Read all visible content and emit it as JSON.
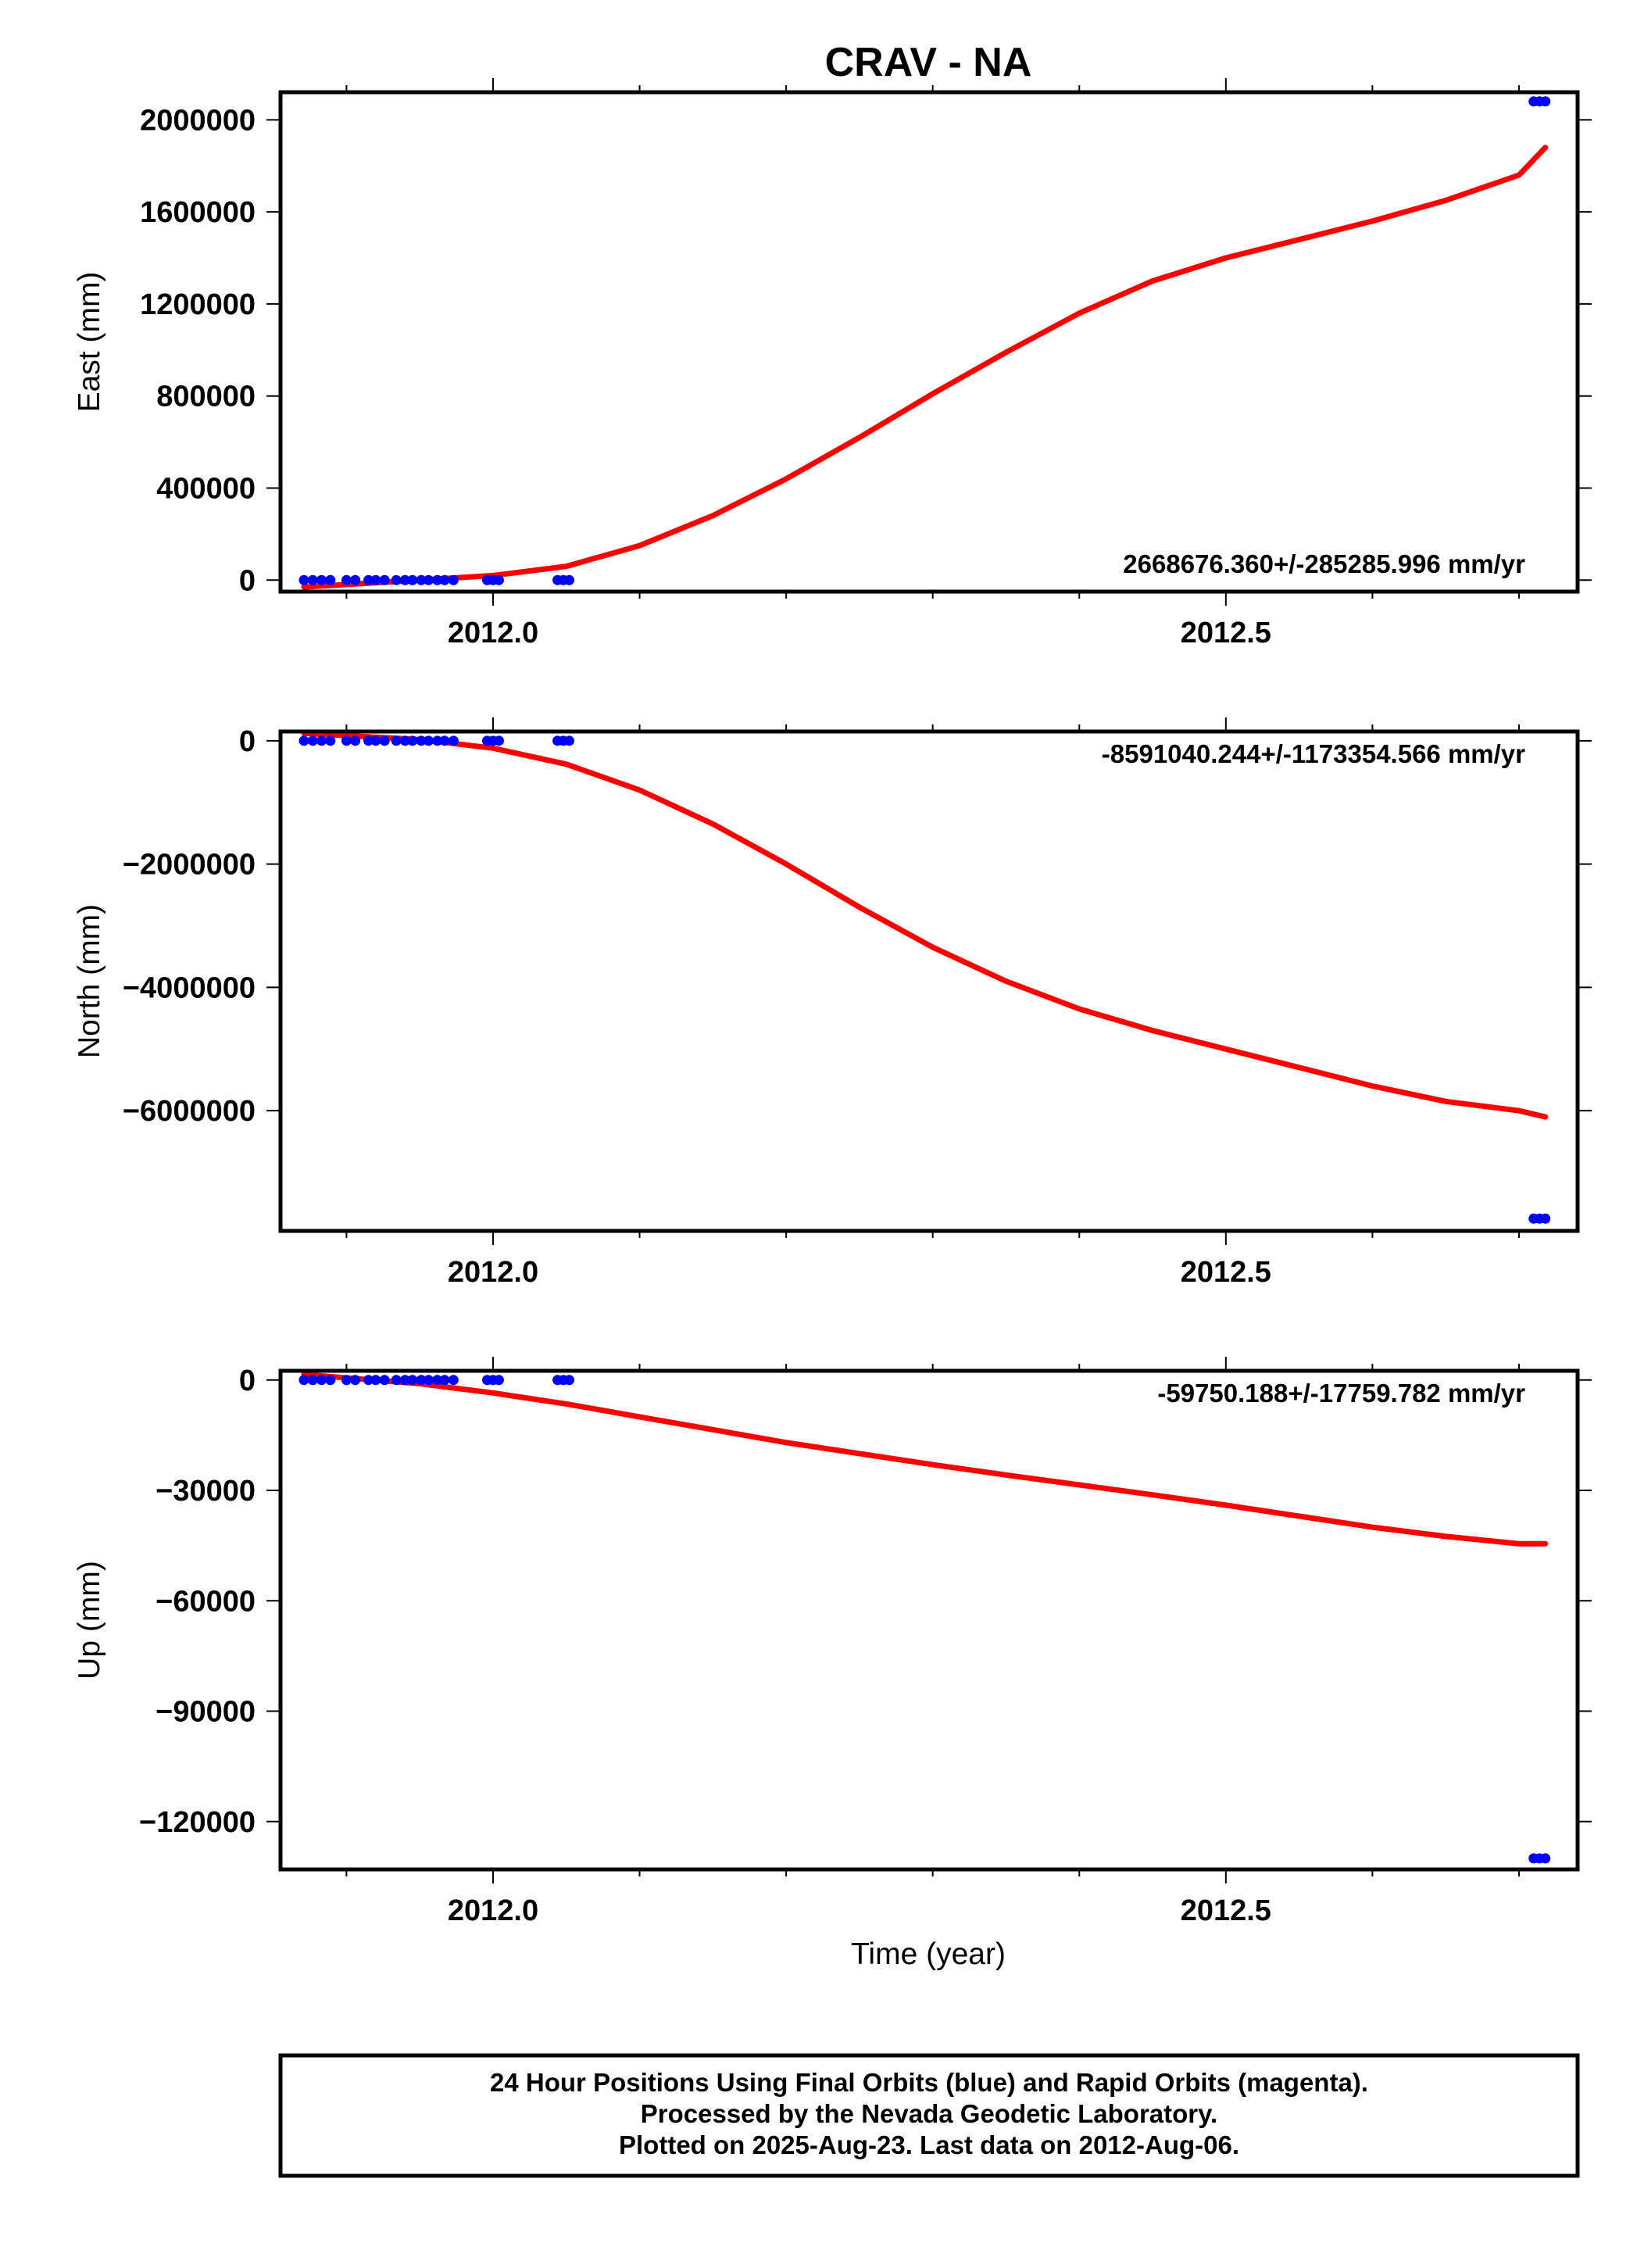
{
  "title": "CRAV - NA",
  "colors": {
    "model": "#ff0000",
    "final_orbits": "#0000ff",
    "frame": "#000000"
  },
  "chart_data": [
    {
      "type": "scatter",
      "id": "east",
      "ylabel": "East (mm)",
      "xlabel": "",
      "xlim": [
        2011.855,
        2012.74
      ],
      "ylim": [
        -50000,
        2120000
      ],
      "yticks": [
        0,
        400000,
        800000,
        1200000,
        1600000,
        2000000
      ],
      "ytick_labels": [
        "0",
        "400000",
        "800000",
        "1200000",
        "1600000",
        "2000000"
      ],
      "xticks": [
        2012.0,
        2012.5
      ],
      "xtick_labels": [
        "2012.0",
        "2012.5"
      ],
      "rate_label": "2668676.360+/-285285.996 mm/yr",
      "series": [
        {
          "role": "final-orbit positions",
          "x": [
            2011.871,
            2011.877,
            2011.883,
            2011.889,
            2011.9,
            2011.906,
            2011.915,
            2011.92,
            2011.926,
            2011.934,
            2011.94,
            2011.945,
            2011.951,
            2011.956,
            2011.962,
            2011.967,
            2011.973,
            2011.996,
            2012.0,
            2012.004,
            2012.044,
            2012.048,
            2012.052,
            2012.71,
            2012.714,
            2012.718
          ],
          "y": [
            0,
            0,
            0,
            0,
            0,
            0,
            0,
            0,
            0,
            0,
            0,
            0,
            0,
            0,
            0,
            0,
            0,
            0,
            0,
            0,
            0,
            0,
            0,
            2080000,
            2080000,
            2080000
          ]
        },
        {
          "role": "model fit",
          "x": [
            2011.871,
            2011.95,
            2012.0,
            2012.05,
            2012.1,
            2012.15,
            2012.2,
            2012.25,
            2012.3,
            2012.35,
            2012.4,
            2012.45,
            2012.5,
            2012.55,
            2012.6,
            2012.65,
            2012.7,
            2012.718
          ],
          "y": [
            -30000,
            0,
            20000,
            60000,
            150000,
            280000,
            440000,
            620000,
            810000,
            990000,
            1160000,
            1300000,
            1400000,
            1480000,
            1560000,
            1650000,
            1760000,
            1880000
          ]
        }
      ]
    },
    {
      "type": "scatter",
      "id": "north",
      "ylabel": "North (mm)",
      "xlabel": "",
      "xlim": [
        2011.855,
        2012.74
      ],
      "ylim": [
        -7950000,
        150000
      ],
      "yticks": [
        0,
        -2000000,
        -4000000,
        -6000000
      ],
      "ytick_labels": [
        "0",
        "−2000000",
        "−4000000",
        "−6000000"
      ],
      "xticks": [
        2012.0,
        2012.5
      ],
      "xtick_labels": [
        "2012.0",
        "2012.5"
      ],
      "rate_label": "-8591040.244+/-1173354.566 mm/yr",
      "series": [
        {
          "role": "final-orbit positions",
          "x": [
            2011.871,
            2011.877,
            2011.883,
            2011.889,
            2011.9,
            2011.906,
            2011.915,
            2011.92,
            2011.926,
            2011.934,
            2011.94,
            2011.945,
            2011.951,
            2011.956,
            2011.962,
            2011.967,
            2011.973,
            2011.996,
            2012.0,
            2012.004,
            2012.044,
            2012.048,
            2012.052,
            2012.71,
            2012.714,
            2012.718
          ],
          "y": [
            0,
            0,
            0,
            0,
            0,
            0,
            0,
            0,
            0,
            0,
            0,
            0,
            0,
            0,
            0,
            0,
            0,
            0,
            0,
            0,
            0,
            0,
            0,
            -7750000,
            -7750000,
            -7750000
          ]
        },
        {
          "role": "model fit",
          "x": [
            2011.871,
            2011.95,
            2012.0,
            2012.05,
            2012.1,
            2012.15,
            2012.2,
            2012.25,
            2012.3,
            2012.35,
            2012.4,
            2012.45,
            2012.5,
            2012.55,
            2012.6,
            2012.65,
            2012.7,
            2012.718
          ],
          "y": [
            120000,
            20000,
            -120000,
            -380000,
            -800000,
            -1350000,
            -2000000,
            -2700000,
            -3350000,
            -3900000,
            -4350000,
            -4700000,
            -5000000,
            -5300000,
            -5600000,
            -5850000,
            -6000000,
            -6100000
          ]
        }
      ]
    },
    {
      "type": "scatter",
      "id": "up",
      "ylabel": "Up (mm)",
      "xlabel": "Time (year)",
      "xlim": [
        2011.855,
        2012.74
      ],
      "ylim": [
        -133000,
        2500
      ],
      "yticks": [
        0,
        -30000,
        -60000,
        -90000,
        -120000
      ],
      "ytick_labels": [
        "0",
        "−30000",
        "−60000",
        "−90000",
        "−120000"
      ],
      "xticks": [
        2012.0,
        2012.5
      ],
      "xtick_labels": [
        "2012.0",
        "2012.5"
      ],
      "rate_label": "-59750.188+/-17759.782 mm/yr",
      "series": [
        {
          "role": "final-orbit positions",
          "x": [
            2011.871,
            2011.877,
            2011.883,
            2011.889,
            2011.9,
            2011.906,
            2011.915,
            2011.92,
            2011.926,
            2011.934,
            2011.94,
            2011.945,
            2011.951,
            2011.956,
            2011.962,
            2011.967,
            2011.973,
            2011.996,
            2012.0,
            2012.004,
            2012.044,
            2012.048,
            2012.052,
            2012.71,
            2012.714,
            2012.718
          ],
          "y": [
            0,
            0,
            0,
            0,
            0,
            0,
            0,
            0,
            0,
            0,
            0,
            0,
            0,
            0,
            0,
            0,
            0,
            0,
            0,
            0,
            0,
            0,
            0,
            -130000,
            -130000,
            -130000
          ]
        },
        {
          "role": "model fit",
          "x": [
            2011.871,
            2011.95,
            2012.0,
            2012.05,
            2012.1,
            2012.15,
            2012.2,
            2012.25,
            2012.3,
            2012.35,
            2012.4,
            2012.45,
            2012.5,
            2012.55,
            2012.6,
            2012.65,
            2012.7,
            2012.718
          ],
          "y": [
            1500,
            -1000,
            -3500,
            -6500,
            -10000,
            -13500,
            -17000,
            -20000,
            -23000,
            -25800,
            -28500,
            -31200,
            -34000,
            -37000,
            -40000,
            -42500,
            -44500,
            -44500
          ]
        }
      ]
    }
  ],
  "footer": {
    "line1": "24 Hour Positions Using Final Orbits (blue) and Rapid Orbits (magenta).",
    "line2": "Processed by the Nevada Geodetic Laboratory.",
    "line3": "Plotted on 2025-Aug-23. Last data on 2012-Aug-06."
  }
}
